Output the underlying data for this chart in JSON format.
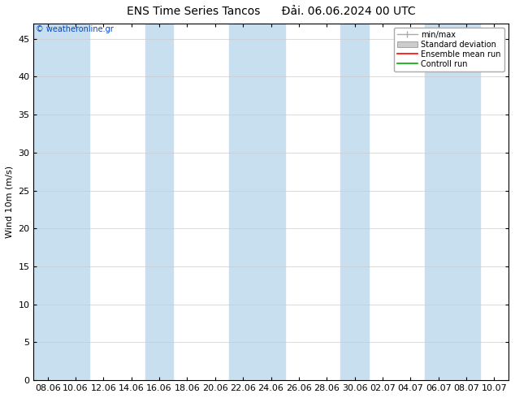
{
  "title_left": "ENS Time Series Tancos",
  "title_right": "Đải. 06.06.2024 00 UTC",
  "ylabel": "Wind 10m (m/s)",
  "ylim": [
    0,
    47
  ],
  "yticks": [
    0,
    5,
    10,
    15,
    20,
    25,
    30,
    35,
    40,
    45
  ],
  "xtick_labels": [
    "08.06",
    "10.06",
    "12.06",
    "14.06",
    "16.06",
    "18.06",
    "20.06",
    "22.06",
    "24.06",
    "26.06",
    "28.06",
    "30.06",
    "02.07",
    "04.07",
    "06.07",
    "08.07",
    "10.07"
  ],
  "copyright_text": "© weatheronline.gr",
  "shade_band_color": "#c8dff0",
  "shade_band_indices": [
    0,
    1,
    4,
    7,
    8,
    11,
    14,
    15
  ],
  "background_color": "#ffffff",
  "title_fontsize": 10,
  "axis_fontsize": 8,
  "tick_fontsize": 8,
  "legend_minmax_color": "#aaaaaa",
  "legend_std_color": "#cccccc",
  "legend_ens_color": "#ff0000",
  "legend_ctrl_color": "#00aa00"
}
